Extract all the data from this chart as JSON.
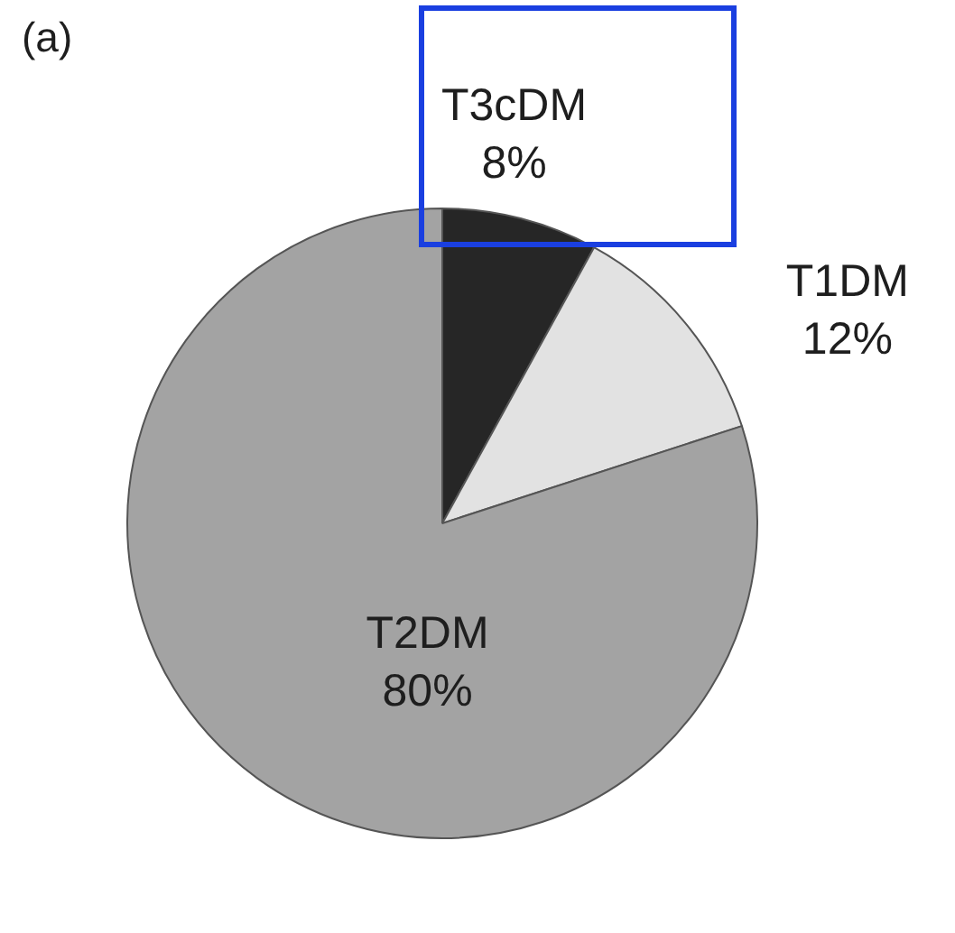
{
  "chart_data": {
    "type": "pie",
    "title": "(a)",
    "categories": [
      "T3cDM",
      "T1DM",
      "T2DM"
    ],
    "values": [
      8,
      12,
      80
    ],
    "value_labels": [
      "8%",
      "12%",
      "80%"
    ],
    "colors": [
      "#262626",
      "#e2e2e2",
      "#a3a3a3"
    ],
    "legend": false
  }
}
